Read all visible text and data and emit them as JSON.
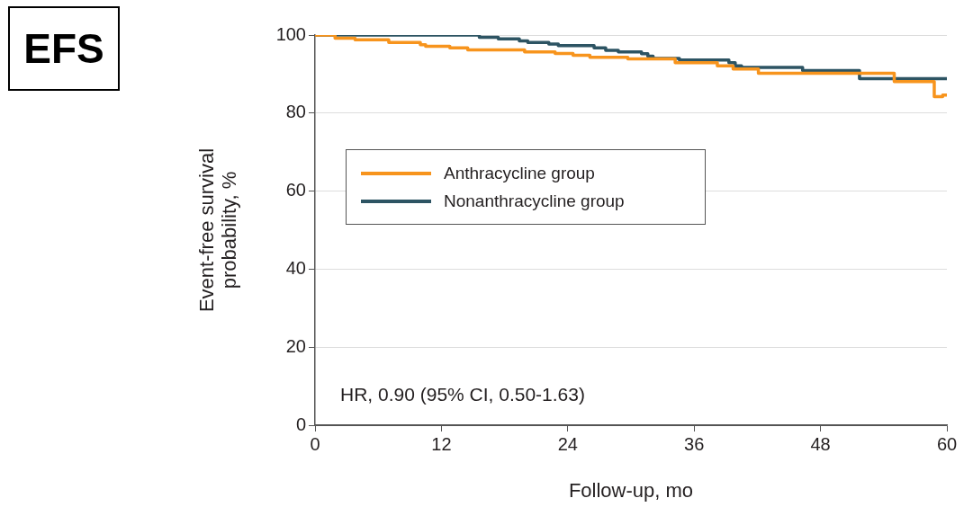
{
  "chart_data": {
    "type": "step",
    "title": "EFS",
    "xlabel": "Follow-up, mo",
    "ylabel": "Event-free survival probability, %",
    "xlim": [
      0,
      60
    ],
    "xticks": [
      0,
      12,
      24,
      36,
      48,
      60
    ],
    "ylim": [
      0,
      100
    ],
    "yticks": [
      0,
      20,
      40,
      60,
      80,
      100
    ],
    "grid": "y",
    "legend": "top left",
    "marker": "none",
    "line_style": "solid",
    "annotations": [
      "HR, 0.90 (95% CI, 0.50-1.63)"
    ],
    "series": [
      {
        "name": "Anthracycline group",
        "color": "#f7941d",
        "x": [
          0,
          1.9,
          3.8,
          7.0,
          10.0,
          10.5,
          12.8,
          14.5,
          19.9,
          22.8,
          24.5,
          26.1,
          29.7,
          34.2,
          38.2,
          39.7,
          42.1,
          55.0,
          58.8,
          59.6,
          60
        ],
        "values": [
          100,
          99.2,
          98.8,
          98.1,
          97.5,
          97.1,
          96.7,
          96.2,
          95.7,
          95.3,
          94.8,
          94.3,
          93.9,
          92.9,
          92.1,
          91.3,
          90.2,
          88.1,
          84.2,
          84.6,
          84.6
        ]
      },
      {
        "name": "Nonanthracycline group",
        "color": "#2d5463",
        "x": [
          0,
          15.6,
          17.4,
          19.4,
          20.2,
          22.2,
          23.1,
          26.5,
          27.6,
          28.8,
          31.0,
          31.6,
          32.1,
          34.6,
          39.3,
          39.9,
          40.5,
          46.3,
          51.7,
          60
        ],
        "values": [
          100,
          99.4,
          99.0,
          98.5,
          98.1,
          97.7,
          97.3,
          96.7,
          96.1,
          95.7,
          95.2,
          94.6,
          94.0,
          93.6,
          92.9,
          92.1,
          91.7,
          90.9,
          88.8,
          88.8
        ]
      }
    ]
  }
}
